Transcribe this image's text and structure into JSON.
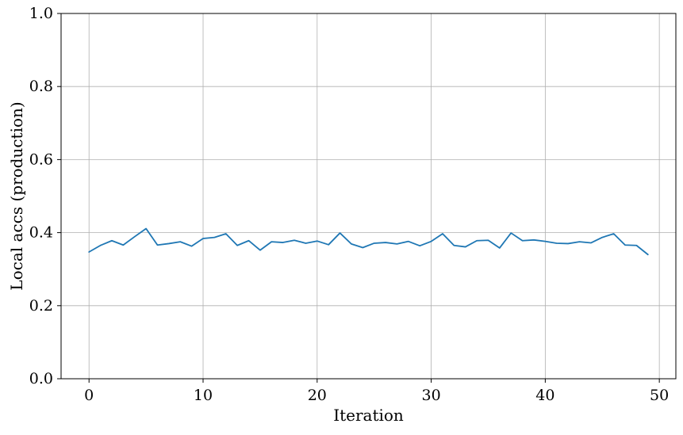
{
  "chart_data": {
    "type": "line",
    "xlabel": "Iteration",
    "ylabel": "Local accs (production)",
    "xlim": [
      -2.45,
      51.45
    ],
    "ylim": [
      0.0,
      1.0
    ],
    "x_ticks": [
      0,
      10,
      20,
      30,
      40,
      50
    ],
    "x_tick_labels": [
      "0",
      "10",
      "20",
      "30",
      "40",
      "50"
    ],
    "y_ticks": [
      0.0,
      0.2,
      0.4,
      0.6,
      0.8,
      1.0
    ],
    "y_tick_labels": [
      "0.0",
      "0.2",
      "0.4",
      "0.6",
      "0.8",
      "1.0"
    ],
    "grid": true,
    "series": [
      {
        "color": "#1f77b4",
        "x": [
          0,
          1,
          2,
          3,
          4,
          5,
          6,
          7,
          8,
          9,
          10,
          11,
          12,
          13,
          14,
          15,
          16,
          17,
          18,
          19,
          20,
          21,
          22,
          23,
          24,
          25,
          26,
          27,
          28,
          29,
          30,
          31,
          32,
          33,
          34,
          35,
          36,
          37,
          38,
          39,
          40,
          41,
          42,
          43,
          44,
          45,
          46,
          47,
          48,
          49
        ],
        "values": [
          0.347,
          0.365,
          0.378,
          0.366,
          0.389,
          0.411,
          0.366,
          0.37,
          0.375,
          0.363,
          0.384,
          0.387,
          0.397,
          0.365,
          0.378,
          0.352,
          0.375,
          0.373,
          0.379,
          0.371,
          0.377,
          0.367,
          0.399,
          0.369,
          0.359,
          0.371,
          0.373,
          0.369,
          0.376,
          0.364,
          0.376,
          0.397,
          0.365,
          0.361,
          0.378,
          0.379,
          0.358,
          0.399,
          0.378,
          0.38,
          0.376,
          0.371,
          0.37,
          0.375,
          0.372,
          0.387,
          0.397,
          0.366,
          0.365,
          0.34
        ]
      }
    ]
  }
}
